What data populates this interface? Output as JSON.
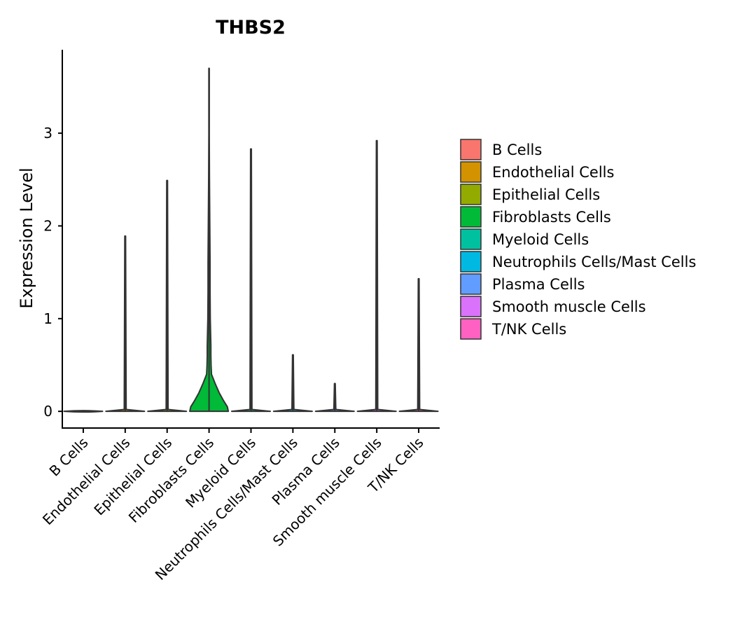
{
  "chart_data": {
    "type": "violin",
    "title": "THBS2",
    "xlabel": "",
    "ylabel": "Expression Level",
    "ylim": [
      -0.18,
      3.9
    ],
    "yticks": [
      0,
      1,
      2,
      3
    ],
    "grid": false,
    "legend_position": "right",
    "categories": [
      "B Cells",
      "Endothelial Cells",
      "Epithelial Cells",
      "Fibroblasts Cells",
      "Myeloid Cells",
      "Neutrophils Cells/Mast Cells",
      "Plasma Cells",
      "Smooth muscle Cells",
      "T/NK Cells"
    ],
    "colors": [
      "#F8766D",
      "#D39200",
      "#93AA00",
      "#00BA38",
      "#00C19F",
      "#00B9E3",
      "#619CFF",
      "#DB72FB",
      "#FF61C3"
    ],
    "series": [
      {
        "name": "B Cells",
        "max": 0.0,
        "density": [
          [
            0,
            1.0
          ]
        ]
      },
      {
        "name": "Endothelial Cells",
        "max": 1.89,
        "density": [
          [
            0,
            1.0
          ],
          [
            0.02,
            0.05
          ],
          [
            1.89,
            0.02
          ]
        ]
      },
      {
        "name": "Epithelial Cells",
        "max": 2.49,
        "density": [
          [
            0,
            1.0
          ],
          [
            0.02,
            0.05
          ],
          [
            2.49,
            0.02
          ]
        ]
      },
      {
        "name": "Fibroblasts Cells",
        "max": 3.7,
        "density": [
          [
            0,
            0.95
          ],
          [
            0.05,
            0.9
          ],
          [
            0.12,
            0.7
          ],
          [
            0.2,
            0.5
          ],
          [
            0.3,
            0.3
          ],
          [
            0.4,
            0.12
          ],
          [
            0.5,
            0.1
          ],
          [
            0.6,
            0.09
          ],
          [
            0.7,
            0.09
          ],
          [
            0.8,
            0.08
          ],
          [
            1.0,
            0.06
          ],
          [
            1.3,
            0.05
          ],
          [
            1.6,
            0.05
          ],
          [
            1.9,
            0.04
          ],
          [
            2.2,
            0.03
          ],
          [
            2.5,
            0.02
          ],
          [
            3.0,
            0.01
          ],
          [
            3.7,
            0.01
          ]
        ]
      },
      {
        "name": "Myeloid Cells",
        "max": 2.83,
        "density": [
          [
            0,
            1.0
          ],
          [
            0.02,
            0.05
          ],
          [
            2.83,
            0.02
          ]
        ]
      },
      {
        "name": "Neutrophils Cells/Mast Cells",
        "max": 0.61,
        "density": [
          [
            0,
            1.0
          ],
          [
            0.02,
            0.05
          ],
          [
            0.61,
            0.02
          ]
        ]
      },
      {
        "name": "Plasma Cells",
        "max": 0.3,
        "density": [
          [
            0,
            1.0
          ],
          [
            0.02,
            0.05
          ],
          [
            0.3,
            0.02
          ]
        ]
      },
      {
        "name": "Smooth muscle Cells",
        "max": 2.92,
        "density": [
          [
            0,
            1.0
          ],
          [
            0.02,
            0.05
          ],
          [
            2.92,
            0.02
          ]
        ]
      },
      {
        "name": "T/NK Cells",
        "max": 1.43,
        "density": [
          [
            0,
            1.0
          ],
          [
            0.02,
            0.05
          ],
          [
            1.43,
            0.02
          ]
        ]
      }
    ]
  }
}
